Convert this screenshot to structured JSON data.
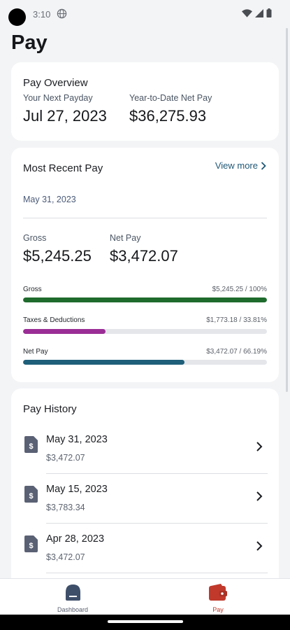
{
  "status_bar": {
    "time": "3:10"
  },
  "page": {
    "title": "Pay"
  },
  "overview": {
    "title": "Pay Overview",
    "next_payday_label": "Your Next Payday",
    "next_payday_value": "Jul 27, 2023",
    "ytd_label": "Year-to-Date Net Pay",
    "ytd_value": "$36,275.93"
  },
  "recent": {
    "title": "Most Recent Pay",
    "view_more": "View more",
    "date": "May 31, 2023",
    "gross_label": "Gross",
    "gross_value": "$5,245.25",
    "net_label": "Net Pay",
    "net_value": "$3,472.07",
    "bars": [
      {
        "label": "Gross",
        "value": "$5,245.25 / 100%",
        "percent": 100,
        "color": "#1e6b2d"
      },
      {
        "label": "Taxes & Deductions",
        "value": "$1,773.18 / 33.81%",
        "percent": 33.81,
        "color": "#9b2d96"
      },
      {
        "label": "Net Pay",
        "value": "$3,472.07 / 66.19%",
        "percent": 66.19,
        "color": "#1f5f7a"
      }
    ]
  },
  "history": {
    "title": "Pay History",
    "items": [
      {
        "date": "May 31, 2023",
        "amount": "$3,472.07"
      },
      {
        "date": "May 15, 2023",
        "amount": "$3,783.34"
      },
      {
        "date": "Apr 28, 2023",
        "amount": "$3,472.07"
      }
    ]
  },
  "nav": {
    "dashboard": {
      "label": "Dashboard",
      "icon": "dashboard-icon",
      "color": "#5a6070"
    },
    "pay": {
      "label": "Pay",
      "icon": "wallet-icon",
      "color": "#c0392b"
    }
  },
  "colors": {
    "accent": "#1f5776",
    "pay_active": "#c0392b"
  }
}
